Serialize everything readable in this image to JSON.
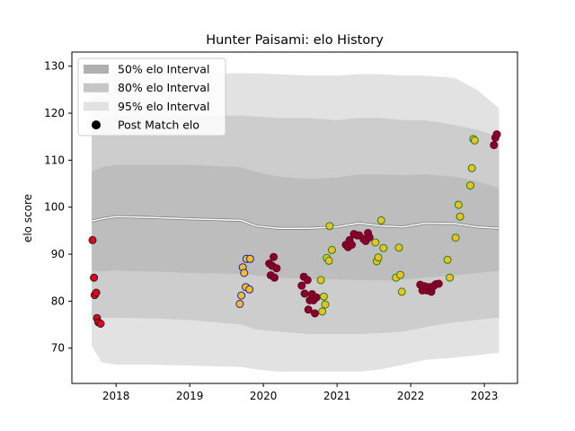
{
  "chart_data": {
    "type": "scatter",
    "title": "Hunter Paisami: elo History",
    "xlabel": "",
    "ylabel": "elo score",
    "xlim": [
      2017.4,
      2023.45
    ],
    "ylim": [
      62.5,
      133
    ],
    "x_ticks": [
      2018,
      2019,
      2020,
      2021,
      2022,
      2023
    ],
    "x_tick_labels": [
      "2018",
      "2019",
      "2020",
      "2021",
      "2022",
      "2023"
    ],
    "y_ticks": [
      70,
      80,
      90,
      100,
      110,
      120,
      130
    ],
    "y_tick_labels": [
      "70",
      "80",
      "90",
      "100",
      "110",
      "120",
      "130"
    ],
    "grid": false,
    "legend_position": "top-left",
    "legend": [
      {
        "label": "50% elo Interval",
        "kind": "band",
        "color": "#b0b0b0"
      },
      {
        "label": "80% elo Interval",
        "kind": "band",
        "color": "#c6c6c6"
      },
      {
        "label": "95% elo Interval",
        "kind": "band",
        "color": "#e2e2e2"
      },
      {
        "label": "Post Match elo",
        "kind": "marker",
        "color": "#000000"
      }
    ],
    "band_x": [
      2017.67,
      2017.8,
      2018.0,
      2018.5,
      2019.0,
      2019.7,
      2019.9,
      2020.2,
      2020.6,
      2021.0,
      2021.3,
      2021.6,
      2021.9,
      2022.2,
      2022.6,
      2022.9,
      2023.2
    ],
    "median_line": [
      97.0,
      97.5,
      98.0,
      97.8,
      97.5,
      97.2,
      96.0,
      95.5,
      95.5,
      95.8,
      96.6,
      96.0,
      95.8,
      96.6,
      96.5,
      95.8,
      95.5
    ],
    "band_50": {
      "lower": [
        86.5,
        86.3,
        86.5,
        86.3,
        86.0,
        85.8,
        85.5,
        85.0,
        84.7,
        84.6,
        84.5,
        84.4,
        84.5,
        85.0,
        85.5,
        86.0,
        86.5
      ],
      "upper": [
        107.5,
        108.5,
        109.0,
        109.0,
        109.0,
        108.5,
        107.5,
        106.5,
        106.0,
        106.3,
        107.0,
        107.0,
        106.8,
        107.0,
        106.5,
        105.5,
        104.0
      ]
    },
    "band_80": {
      "lower": [
        77.0,
        76.5,
        76.5,
        76.3,
        76.0,
        75.0,
        74.0,
        73.5,
        73.0,
        73.0,
        73.0,
        73.2,
        73.5,
        74.5,
        75.5,
        76.0,
        76.5
      ],
      "upper": [
        117.5,
        119.0,
        119.5,
        119.5,
        119.5,
        119.5,
        119.3,
        119.0,
        119.0,
        118.5,
        119.0,
        119.0,
        118.5,
        118.5,
        117.5,
        116.5,
        115.0
      ]
    },
    "band_95": {
      "lower": [
        70.5,
        67.0,
        66.5,
        66.5,
        66.3,
        66.0,
        65.5,
        65.0,
        65.0,
        65.0,
        65.0,
        65.5,
        66.5,
        67.5,
        68.0,
        68.5,
        69.0
      ],
      "upper": [
        126.0,
        128.0,
        128.5,
        128.5,
        128.5,
        128.5,
        128.5,
        128.3,
        128.0,
        128.0,
        128.3,
        128.3,
        128.0,
        128.0,
        127.5,
        125.0,
        121.0
      ]
    },
    "series": [
      {
        "fill": "#e8001c",
        "edge": "#202020",
        "points": [
          {
            "x": 2017.68,
            "y": 93.0
          },
          {
            "x": 2017.7,
            "y": 85.0
          },
          {
            "x": 2017.71,
            "y": 81.3
          },
          {
            "x": 2017.73,
            "y": 81.8
          },
          {
            "x": 2017.74,
            "y": 76.4
          },
          {
            "x": 2017.76,
            "y": 75.5
          },
          {
            "x": 2017.79,
            "y": 75.2
          }
        ]
      },
      {
        "fill": "#f0c020",
        "edge": "#2020b0",
        "points": [
          {
            "x": 2019.68,
            "y": 79.4
          },
          {
            "x": 2019.7,
            "y": 81.2
          },
          {
            "x": 2019.72,
            "y": 87.2
          },
          {
            "x": 2019.74,
            "y": 86.0
          },
          {
            "x": 2019.76,
            "y": 83.0
          },
          {
            "x": 2019.77,
            "y": 89.0
          },
          {
            "x": 2019.81,
            "y": 82.5
          },
          {
            "x": 2019.82,
            "y": 89.0
          }
        ]
      },
      {
        "fill": "#860029",
        "edge": "#6a0020",
        "points": [
          {
            "x": 2020.08,
            "y": 88.0
          },
          {
            "x": 2020.1,
            "y": 85.5
          },
          {
            "x": 2020.12,
            "y": 87.5
          },
          {
            "x": 2020.14,
            "y": 89.4
          },
          {
            "x": 2020.15,
            "y": 85.0
          },
          {
            "x": 2020.18,
            "y": 87.0
          },
          {
            "x": 2020.52,
            "y": 83.3
          },
          {
            "x": 2020.55,
            "y": 85.2
          },
          {
            "x": 2020.56,
            "y": 81.6
          },
          {
            "x": 2020.6,
            "y": 84.5
          },
          {
            "x": 2020.61,
            "y": 78.2
          },
          {
            "x": 2020.63,
            "y": 80.2
          },
          {
            "x": 2020.66,
            "y": 81.5
          },
          {
            "x": 2020.68,
            "y": 80.2
          },
          {
            "x": 2020.7,
            "y": 77.4
          },
          {
            "x": 2020.72,
            "y": 80.8
          },
          {
            "x": 2021.12,
            "y": 92.0
          },
          {
            "x": 2021.15,
            "y": 91.5
          },
          {
            "x": 2021.17,
            "y": 93.0
          },
          {
            "x": 2021.2,
            "y": 92.0
          },
          {
            "x": 2021.23,
            "y": 94.3
          },
          {
            "x": 2021.27,
            "y": 94.0
          },
          {
            "x": 2021.3,
            "y": 94.0
          },
          {
            "x": 2021.36,
            "y": 93.2
          },
          {
            "x": 2021.39,
            "y": 92.8
          },
          {
            "x": 2021.42,
            "y": 94.5
          },
          {
            "x": 2021.44,
            "y": 93.6
          },
          {
            "x": 2022.13,
            "y": 83.5
          },
          {
            "x": 2022.16,
            "y": 82.3
          },
          {
            "x": 2022.19,
            "y": 83.2
          },
          {
            "x": 2022.22,
            "y": 82.3
          },
          {
            "x": 2022.25,
            "y": 83.0
          },
          {
            "x": 2022.28,
            "y": 82.0
          },
          {
            "x": 2022.31,
            "y": 83.2
          },
          {
            "x": 2022.34,
            "y": 83.6
          },
          {
            "x": 2022.38,
            "y": 83.7
          },
          {
            "x": 2023.13,
            "y": 113.2
          },
          {
            "x": 2023.15,
            "y": 114.8
          },
          {
            "x": 2023.17,
            "y": 115.5
          }
        ]
      },
      {
        "fill": "#f0c020",
        "edge": "#208020",
        "points": [
          {
            "x": 2020.78,
            "y": 84.5
          },
          {
            "x": 2020.8,
            "y": 77.8
          },
          {
            "x": 2020.82,
            "y": 81.0
          },
          {
            "x": 2020.84,
            "y": 79.3
          },
          {
            "x": 2020.86,
            "y": 89.2
          },
          {
            "x": 2020.89,
            "y": 88.6
          },
          {
            "x": 2020.9,
            "y": 96.0
          },
          {
            "x": 2020.93,
            "y": 90.9
          },
          {
            "x": 2021.52,
            "y": 92.5
          },
          {
            "x": 2021.54,
            "y": 88.5
          },
          {
            "x": 2021.56,
            "y": 89.3
          },
          {
            "x": 2021.6,
            "y": 97.2
          },
          {
            "x": 2021.63,
            "y": 91.3
          },
          {
            "x": 2021.8,
            "y": 85.0
          },
          {
            "x": 2021.84,
            "y": 91.4
          },
          {
            "x": 2021.86,
            "y": 85.6
          },
          {
            "x": 2021.88,
            "y": 82.0
          },
          {
            "x": 2022.5,
            "y": 88.8
          },
          {
            "x": 2022.53,
            "y": 85.0
          },
          {
            "x": 2022.61,
            "y": 93.5
          },
          {
            "x": 2022.65,
            "y": 100.5
          },
          {
            "x": 2022.67,
            "y": 98.0
          },
          {
            "x": 2022.81,
            "y": 104.6
          },
          {
            "x": 2022.83,
            "y": 108.3
          },
          {
            "x": 2022.85,
            "y": 114.5
          },
          {
            "x": 2022.87,
            "y": 114.2
          }
        ]
      }
    ]
  }
}
